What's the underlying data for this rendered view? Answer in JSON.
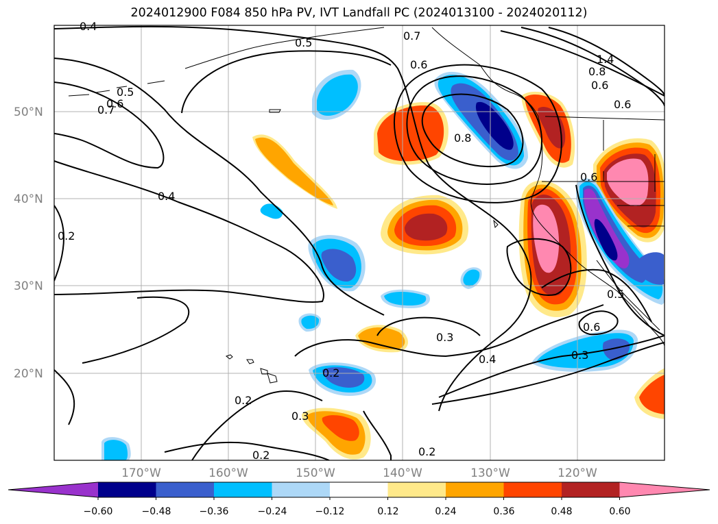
{
  "title": "2024012900 F084 850 hPa PV, IVT Landfall PC (2024013100 - 2024020112)",
  "lat_labels": [
    "50°N",
    "40°N",
    "30°N",
    "20°N"
  ],
  "lon_labels": [
    "170°W",
    "160°W",
    "150°W",
    "140°W",
    "130°W",
    "120°W"
  ],
  "colorbar": {
    "colors": [
      "#9932cc",
      "#00008b",
      "#3a5fcd",
      "#00bfff",
      "#add8f7",
      "#ffffff",
      "#ffe98a",
      "#ffa500",
      "#ff4500",
      "#b22222",
      "#ff88b0"
    ],
    "tick_labels": [
      "−0.60",
      "−0.48",
      "−0.36",
      "−0.24",
      "−0.12",
      "0.12",
      "0.24",
      "0.36",
      "0.48",
      "0.60"
    ]
  },
  "contour_labels": [
    "0.4",
    "0.5",
    "0.7",
    "0.6",
    "1.4",
    "0.8",
    "0.5",
    "0.6",
    "0.7",
    "0.8",
    "0.6",
    "0.4",
    "0.2",
    "0.5",
    "0.6",
    "0.3",
    "0.3",
    "0.4",
    "0.2",
    "0.2",
    "0.3",
    "0.2",
    "0.2",
    "0.6",
    "0.6"
  ],
  "contour_label_meta": "PV contours (PVU)",
  "colors": {
    "coast": "#000000",
    "grid": "#b0b0b0",
    "contour": "#000000"
  }
}
